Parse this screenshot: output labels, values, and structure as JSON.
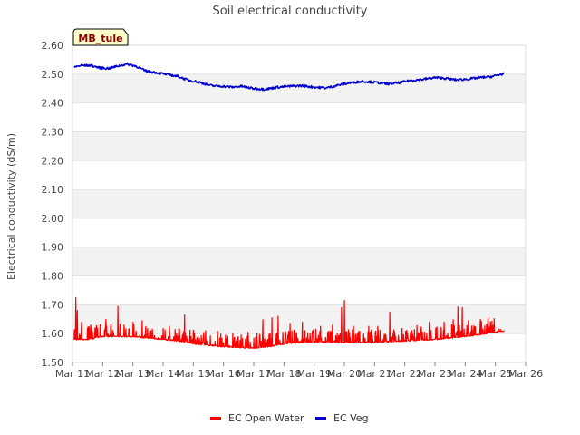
{
  "chart_data": {
    "type": "line",
    "title": "Soil electrical conductivity",
    "ylabel": "Electrical conductivity (dS/m)",
    "xlabel": "",
    "site_label": "MB_tule",
    "ylim": [
      1.5,
      2.6
    ],
    "yticks": [
      "1.50",
      "1.60",
      "1.70",
      "1.80",
      "1.90",
      "2.00",
      "2.10",
      "2.20",
      "2.30",
      "2.40",
      "2.50",
      "2.60"
    ],
    "xlim": [
      0,
      15
    ],
    "xticks": [
      "Mar 11",
      "Mar 12",
      "Mar 13",
      "Mar 14",
      "Mar 15",
      "Mar 16",
      "Mar 17",
      "Mar 18",
      "Mar 19",
      "Mar 20",
      "Mar 21",
      "Mar 22",
      "Mar 23",
      "Mar 24",
      "Mar 25",
      "Mar 26"
    ],
    "x_unit": "days since Mar 11",
    "grid": "horizontal alternating bands",
    "legend": "bottom-center",
    "series": [
      {
        "name": "EC Open Water",
        "color": "#ff0000",
        "baseline": [
          [
            0.05,
            1.58
          ],
          [
            0.5,
            1.58
          ],
          [
            1.0,
            1.59
          ],
          [
            2.0,
            1.59
          ],
          [
            2.5,
            1.585
          ],
          [
            3.0,
            1.58
          ],
          [
            3.5,
            1.575
          ],
          [
            4.0,
            1.565
          ],
          [
            5.0,
            1.555
          ],
          [
            6.0,
            1.55
          ],
          [
            6.5,
            1.555
          ],
          [
            7.0,
            1.565
          ],
          [
            8.0,
            1.572
          ],
          [
            9.0,
            1.57
          ],
          [
            10.0,
            1.57
          ],
          [
            11.0,
            1.575
          ],
          [
            12.0,
            1.58
          ],
          [
            13.0,
            1.59
          ],
          [
            14.0,
            1.605
          ],
          [
            14.3,
            1.61
          ]
        ],
        "peaks": [
          [
            0.1,
            1.725
          ],
          [
            0.15,
            1.68
          ],
          [
            0.3,
            1.64
          ],
          [
            0.6,
            1.63
          ],
          [
            1.1,
            1.65
          ],
          [
            1.5,
            1.695
          ],
          [
            2.0,
            1.64
          ],
          [
            2.3,
            1.645
          ],
          [
            3.2,
            1.625
          ],
          [
            3.7,
            1.665
          ],
          [
            4.0,
            1.612
          ],
          [
            4.4,
            1.61
          ],
          [
            4.8,
            1.608
          ],
          [
            5.3,
            1.6
          ],
          [
            5.8,
            1.605
          ],
          [
            6.1,
            1.6
          ],
          [
            6.3,
            1.648
          ],
          [
            6.6,
            1.655
          ],
          [
            6.8,
            1.66
          ],
          [
            7.2,
            1.635
          ],
          [
            7.6,
            1.64
          ],
          [
            8.2,
            1.625
          ],
          [
            8.6,
            1.63
          ],
          [
            8.9,
            1.69
          ],
          [
            9.0,
            1.715
          ],
          [
            9.3,
            1.625
          ],
          [
            9.8,
            1.625
          ],
          [
            10.1,
            1.625
          ],
          [
            10.5,
            1.675
          ],
          [
            10.9,
            1.618
          ],
          [
            11.4,
            1.628
          ],
          [
            11.8,
            1.64
          ],
          [
            12.3,
            1.64
          ],
          [
            12.6,
            1.648
          ],
          [
            12.75,
            1.693
          ],
          [
            12.9,
            1.69
          ],
          [
            13.1,
            1.645
          ],
          [
            13.5,
            1.65
          ],
          [
            13.75,
            1.655
          ],
          [
            13.95,
            1.652
          ]
        ]
      },
      {
        "name": "EC Veg",
        "color": "#0000cc",
        "points": [
          [
            0.05,
            2.525
          ],
          [
            0.3,
            2.53
          ],
          [
            0.6,
            2.53
          ],
          [
            0.9,
            2.522
          ],
          [
            1.2,
            2.52
          ],
          [
            1.5,
            2.528
          ],
          [
            1.8,
            2.535
          ],
          [
            2.1,
            2.528
          ],
          [
            2.4,
            2.512
          ],
          [
            2.8,
            2.505
          ],
          [
            3.2,
            2.498
          ],
          [
            3.5,
            2.492
          ],
          [
            3.8,
            2.48
          ],
          [
            4.2,
            2.472
          ],
          [
            4.6,
            2.46
          ],
          [
            5.0,
            2.458
          ],
          [
            5.3,
            2.455
          ],
          [
            5.6,
            2.458
          ],
          [
            6.0,
            2.45
          ],
          [
            6.4,
            2.448
          ],
          [
            6.8,
            2.455
          ],
          [
            7.2,
            2.458
          ],
          [
            7.6,
            2.46
          ],
          [
            8.0,
            2.455
          ],
          [
            8.4,
            2.452
          ],
          [
            8.8,
            2.462
          ],
          [
            9.2,
            2.47
          ],
          [
            9.6,
            2.475
          ],
          [
            10.0,
            2.472
          ],
          [
            10.4,
            2.466
          ],
          [
            10.8,
            2.47
          ],
          [
            11.2,
            2.478
          ],
          [
            11.6,
            2.482
          ],
          [
            12.0,
            2.488
          ],
          [
            12.3,
            2.486
          ],
          [
            12.7,
            2.48
          ],
          [
            13.1,
            2.483
          ],
          [
            13.5,
            2.488
          ],
          [
            13.9,
            2.492
          ],
          [
            14.2,
            2.5
          ],
          [
            14.3,
            2.502
          ]
        ]
      }
    ]
  }
}
